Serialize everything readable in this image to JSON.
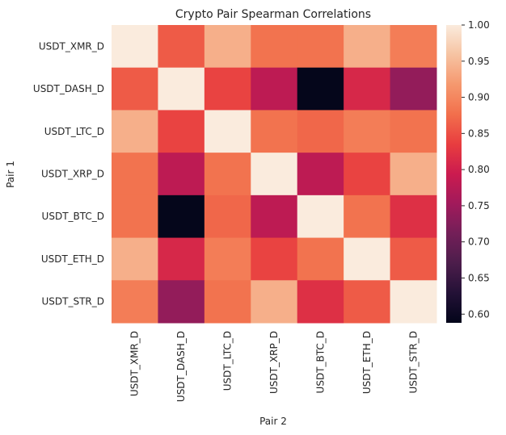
{
  "chart_data": {
    "type": "heatmap",
    "title": "Crypto Pair Spearman Correlations",
    "xlabel": "Pair 2",
    "ylabel": "Pair 1",
    "rows": [
      "USDT_XMR_D",
      "USDT_DASH_D",
      "USDT_LTC_D",
      "USDT_XRP_D",
      "USDT_BTC_D",
      "USDT_ETH_D",
      "USDT_STR_D"
    ],
    "columns": [
      "USDT_XMR_D",
      "USDT_DASH_D",
      "USDT_LTC_D",
      "USDT_XRP_D",
      "USDT_BTC_D",
      "USDT_ETH_D",
      "USDT_STR_D"
    ],
    "values": [
      [
        1.0,
        0.86,
        0.94,
        0.88,
        0.88,
        0.94,
        0.89
      ],
      [
        0.86,
        1.0,
        0.84,
        0.78,
        0.59,
        0.81,
        0.74
      ],
      [
        0.94,
        0.84,
        1.0,
        0.88,
        0.87,
        0.89,
        0.88
      ],
      [
        0.88,
        0.78,
        0.88,
        1.0,
        0.78,
        0.84,
        0.94
      ],
      [
        0.88,
        0.59,
        0.87,
        0.78,
        1.0,
        0.88,
        0.82
      ],
      [
        0.94,
        0.81,
        0.89,
        0.84,
        0.88,
        1.0,
        0.86
      ],
      [
        0.89,
        0.74,
        0.88,
        0.94,
        0.82,
        0.86,
        1.0
      ]
    ],
    "colorbar": {
      "min": 0.588,
      "max": 1.0,
      "ticks": [
        "0.60",
        "0.65",
        "0.70",
        "0.75",
        "0.80",
        "0.85",
        "0.90",
        "0.95",
        "1.00"
      ]
    },
    "colormap": "rocket",
    "grid": false
  }
}
